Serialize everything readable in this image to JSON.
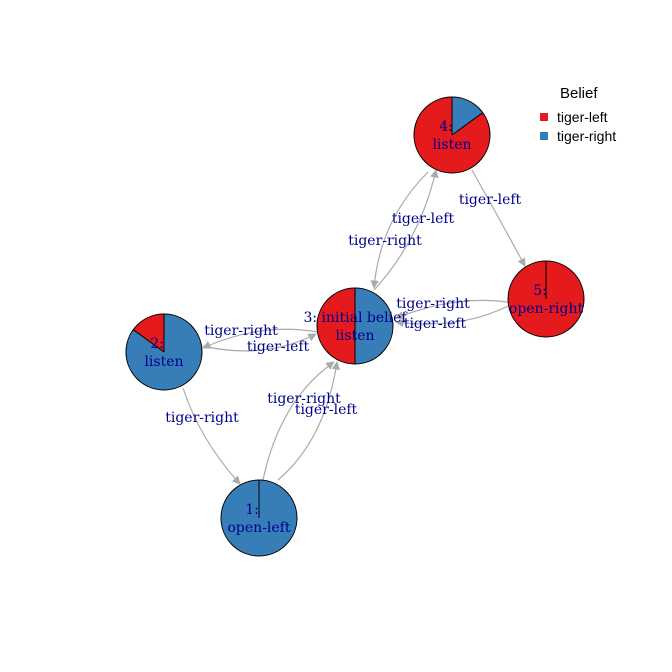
{
  "colors": {
    "tiger-left": "#e41a1c",
    "tiger-right": "#377eb8",
    "edge": "#aaaaaa",
    "label": "#00008b"
  },
  "legend": {
    "title": "Belief",
    "items": [
      {
        "label": "tiger-left",
        "color": "#e41a1c"
      },
      {
        "label": "tiger-right",
        "color": "#377eb8"
      }
    ]
  },
  "nodes": [
    {
      "id": "1",
      "label_line1": "1:",
      "label_line2": "open-left",
      "belief_tiger_left": 0.0,
      "belief_tiger_right": 1.0
    },
    {
      "id": "2",
      "label_line1": "2:",
      "label_line2": "listen",
      "belief_tiger_left": 0.15,
      "belief_tiger_right": 0.85
    },
    {
      "id": "3",
      "label_line1": "3: initial belief",
      "label_line2": "listen",
      "belief_tiger_left": 0.5,
      "belief_tiger_right": 0.5
    },
    {
      "id": "4",
      "label_line1": "4:",
      "label_line2": "listen",
      "belief_tiger_left": 0.85,
      "belief_tiger_right": 0.15
    },
    {
      "id": "5",
      "label_line1": "5:",
      "label_line2": "open-right",
      "belief_tiger_left": 1.0,
      "belief_tiger_right": 0.0
    }
  ],
  "edges": [
    {
      "from": "3",
      "to": "2",
      "label": "tiger-right"
    },
    {
      "from": "2",
      "to": "3",
      "label": "tiger-left"
    },
    {
      "from": "3",
      "to": "4",
      "label": "tiger-left"
    },
    {
      "from": "4",
      "to": "3",
      "label": "tiger-right"
    },
    {
      "from": "2",
      "to": "1",
      "label": "tiger-right"
    },
    {
      "from": "1",
      "to": "3",
      "label": "tiger-right"
    },
    {
      "from": "1",
      "to": "3",
      "label": "tiger-left"
    },
    {
      "from": "4",
      "to": "5",
      "label": "tiger-left"
    },
    {
      "from": "5",
      "to": "3",
      "label": "tiger-right"
    },
    {
      "from": "5",
      "to": "3",
      "label": "tiger-left"
    }
  ]
}
